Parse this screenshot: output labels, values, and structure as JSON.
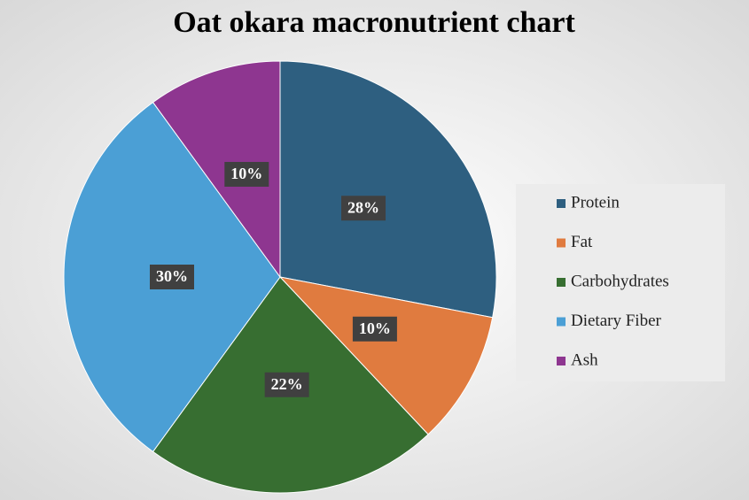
{
  "chart_data": {
    "type": "pie",
    "title": "Oat okara macronutrient chart",
    "categories": [
      "Protein",
      "Fat",
      "Carbohydrates",
      "Dietary Fiber",
      "Ash"
    ],
    "values": [
      28,
      10,
      22,
      30,
      10
    ],
    "value_labels": [
      "28%",
      "10%",
      "22%",
      "30%",
      "10%"
    ],
    "colors": [
      "#2e5f80",
      "#e07b3f",
      "#376e31",
      "#4b9fd5",
      "#8e3690"
    ],
    "legend": "right"
  }
}
